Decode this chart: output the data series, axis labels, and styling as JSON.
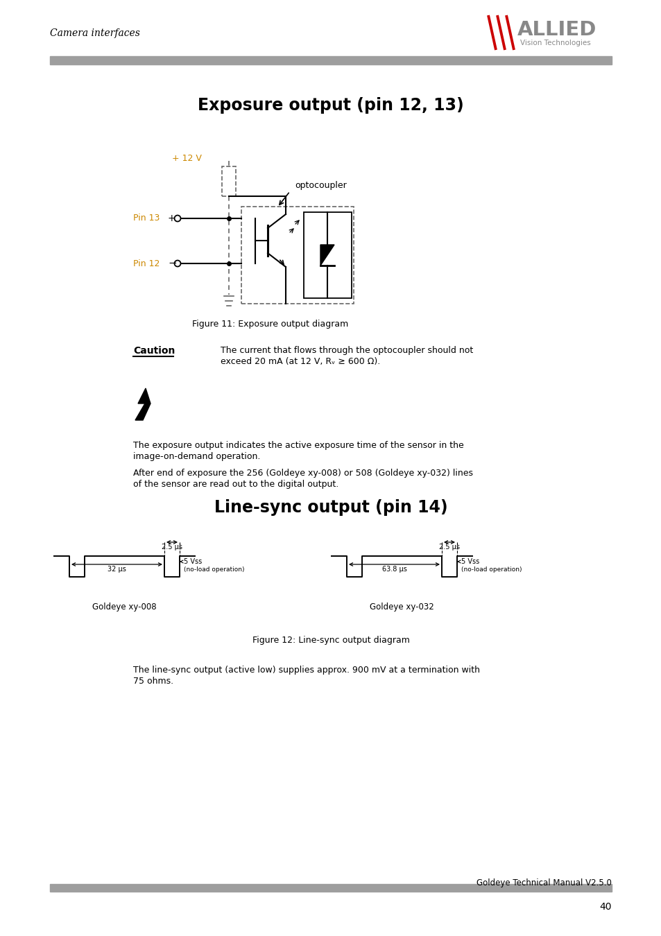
{
  "page_header_left": "Camera interfaces",
  "section1_title": "Exposure output (pin 12, 13)",
  "figure1_caption": "Figure 11: Exposure output diagram",
  "caution_label": "Caution",
  "caution_line1": "The current that flows through the optocoupler should not",
  "caution_line2": "exceed 20 mA (at 12 V, Rᵥ ≥ 600 Ω).",
  "body_text1_line1": "The exposure output indicates the active exposure time of the sensor in the",
  "body_text1_line2": "image-on-demand operation.",
  "body_text2_line1": "After end of exposure the 256 (Goldeye xy-008) or 508 (Goldeye xy-032) lines",
  "body_text2_line2": "of the sensor are read out to the digital output.",
  "section2_title": "Line-sync output (pin 14)",
  "goldeye008_label": "Goldeye xy-008",
  "goldeye032_label": "Goldeye xy-032",
  "t1_008": "32 µs",
  "t2_008": "2.5 µs",
  "t1_032": "63.8 µs",
  "t2_032": "2.5 µs",
  "vss_label": "5 Vss",
  "noload_label": "(no-load operation)",
  "figure2_caption": "Figure 12: Line-sync output diagram",
  "body_text3_line1": "The line-sync output (active low) supplies approx. 900 mV at a termination with",
  "body_text3_line2": "75 ohms.",
  "footer_text": "Goldeye Technical Manual V2.5.0",
  "page_number": "40",
  "color_orange": "#cc8800",
  "color_black": "#000000",
  "color_gray_bar": "#9e9e9e",
  "color_dashed": "#666666",
  "color_red": "#cc0000",
  "color_logo_gray": "#888888",
  "bg": "#ffffff"
}
